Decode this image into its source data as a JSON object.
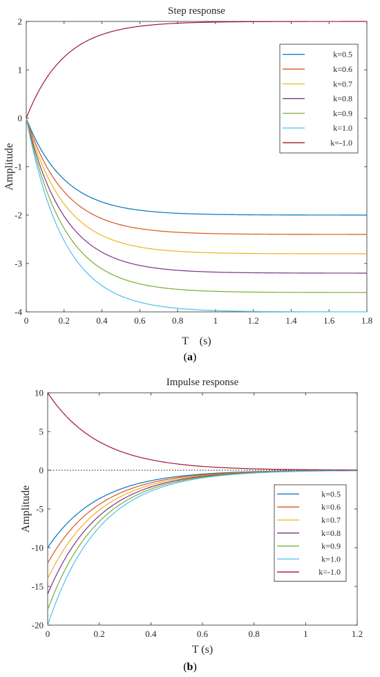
{
  "chart_data": [
    {
      "id": "a",
      "type": "line",
      "title": "Step response",
      "xlabel": "T　(s)",
      "ylabel": "Amplitude",
      "caption_letter": "a",
      "xlim": [
        0,
        1.8
      ],
      "ylim": [
        -4,
        2
      ],
      "x_ticks": [
        0,
        0.2,
        0.4,
        0.6,
        0.8,
        1,
        1.2,
        1.4,
        1.6,
        1.8
      ],
      "x_tick_labels": [
        "0",
        "0.2",
        "0.4",
        "0.6",
        "0.8",
        "1",
        "1.2",
        "1.4",
        "1.6",
        "1.8"
      ],
      "y_ticks": [
        -4,
        -3,
        -2,
        -1,
        0,
        1,
        2
      ],
      "y_tick_labels": [
        "-4",
        "-3",
        "-2",
        "-1",
        "0",
        "1",
        "2"
      ],
      "grid": false,
      "legend_position": "top-right",
      "model": "step",
      "time_constant": 0.2,
      "series": [
        {
          "name": "k=0.5",
          "color": "#0072bd",
          "final": -2.0
        },
        {
          "name": "k=0.6",
          "color": "#d95319",
          "final": -2.4
        },
        {
          "name": "k=0.7",
          "color": "#edb120",
          "final": -2.8
        },
        {
          "name": "k=0.8",
          "color": "#7e2f8e",
          "final": -3.2
        },
        {
          "name": "k=0.9",
          "color": "#77ac30",
          "final": -3.6
        },
        {
          "name": "k=1.0",
          "color": "#4dbeee",
          "final": -4.0
        },
        {
          "name": "k=-1.0",
          "color": "#a2142f",
          "final": 2.0
        }
      ]
    },
    {
      "id": "b",
      "type": "line",
      "title": "Impulse response",
      "xlabel": "T (s)",
      "ylabel": "Amplitude",
      "caption_letter": "b",
      "xlim": [
        0,
        1.2
      ],
      "ylim": [
        -20,
        10
      ],
      "x_ticks": [
        0,
        0.2,
        0.4,
        0.6,
        0.8,
        1,
        1.2
      ],
      "x_tick_labels": [
        "0",
        "0.2",
        "0.4",
        "0.6",
        "0.8",
        "1",
        "1.2"
      ],
      "y_ticks": [
        -20,
        -15,
        -10,
        -5,
        0,
        5,
        10
      ],
      "y_tick_labels": [
        "-20",
        "-15",
        "-10",
        "-5",
        "0",
        "5",
        "10"
      ],
      "grid": false,
      "zero_line": "dotted",
      "legend_position": "bottom-right",
      "model": "impulse",
      "time_constant": 0.2,
      "series": [
        {
          "name": "k=0.5",
          "color": "#0072bd",
          "initial": -10
        },
        {
          "name": "k=0.6",
          "color": "#d95319",
          "initial": -12
        },
        {
          "name": "k=0.7",
          "color": "#edb120",
          "initial": -14
        },
        {
          "name": "k=0.8",
          "color": "#7e2f8e",
          "initial": -16
        },
        {
          "name": "k=0.9",
          "color": "#77ac30",
          "initial": -18
        },
        {
          "name": "k=1.0",
          "color": "#4dbeee",
          "initial": -20
        },
        {
          "name": "k=-1.0",
          "color": "#a2142f",
          "initial": 10
        }
      ]
    }
  ]
}
